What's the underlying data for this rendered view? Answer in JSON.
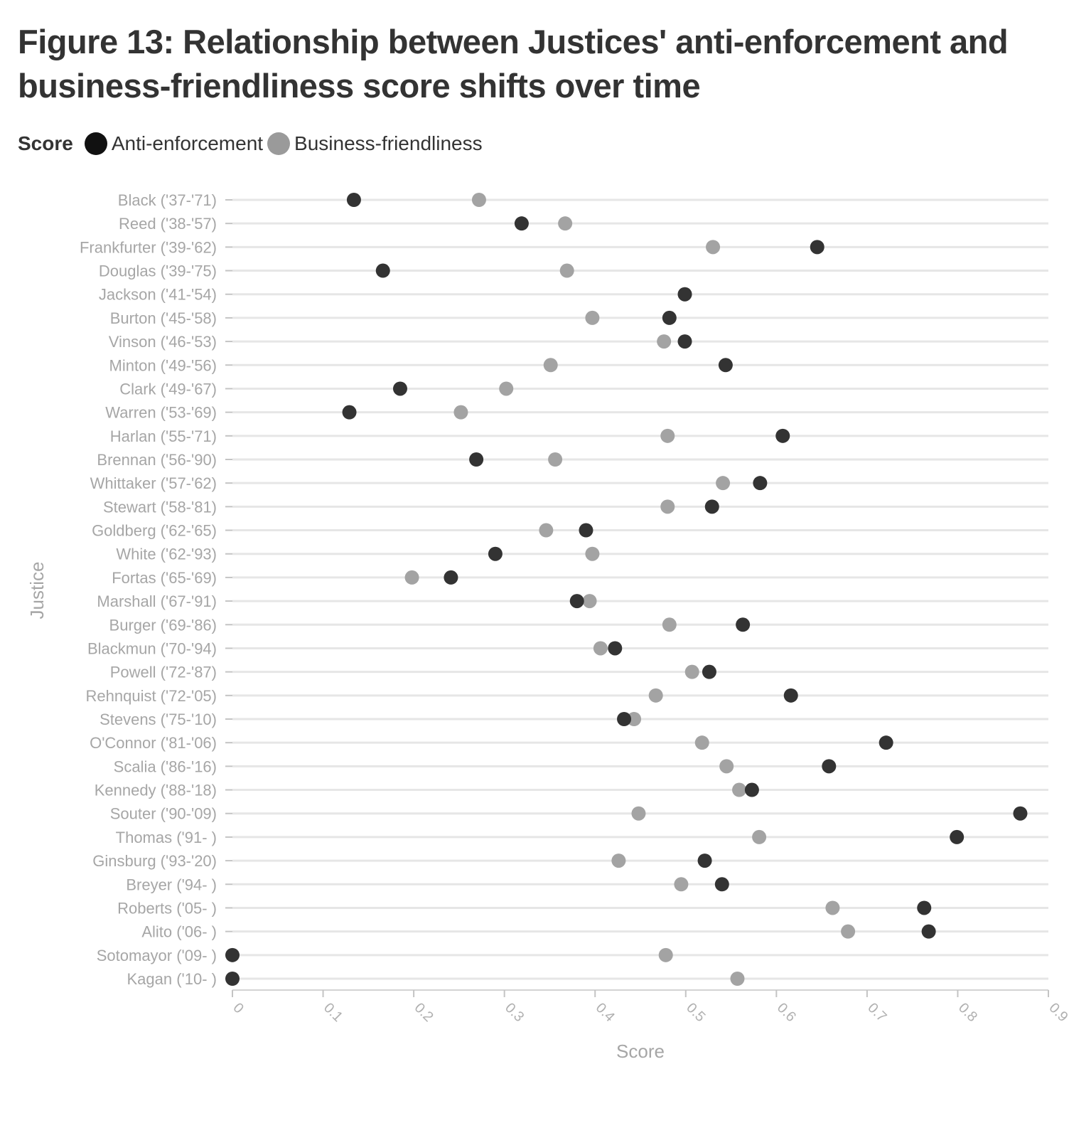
{
  "chart_data": {
    "type": "scatter",
    "title": "Figure 13: Relationship between Justices' anti-enforcement and business-friendliness score shifts over time",
    "xlabel": "Score",
    "ylabel": "Justice",
    "xlim": [
      0,
      0.9
    ],
    "xticks": [
      "0",
      "0.1",
      "0.2",
      "0.3",
      "0.4",
      "0.5",
      "0.6",
      "0.7",
      "0.8",
      "0.9"
    ],
    "grid": "horizontal",
    "legend": {
      "title": "Score",
      "position": "top-left"
    },
    "categories": [
      "Black ('37-'71)",
      "Reed ('38-'57)",
      "Frankfurter ('39-'62)",
      "Douglas ('39-'75)",
      "Jackson ('41-'54)",
      "Burton ('45-'58)",
      "Vinson ('46-'53)",
      "Minton ('49-'56)",
      "Clark ('49-'67)",
      "Warren ('53-'69)",
      "Harlan ('55-'71)",
      "Brennan ('56-'90)",
      "Whittaker ('57-'62)",
      "Stewart ('58-'81)",
      "Goldberg ('62-'65)",
      "White ('62-'93)",
      "Fortas ('65-'69)",
      "Marshall ('67-'91)",
      "Burger ('69-'86)",
      "Blackmun ('70-'94)",
      "Powell ('72-'87)",
      "Rehnquist ('72-'05)",
      "Stevens ('75-'10)",
      "O'Connor ('81-'06)",
      "Scalia ('86-'16)",
      "Kennedy ('88-'18)",
      "Souter ('90-'09)",
      "Thomas ('91- )",
      "Ginsburg ('93-'20)",
      "Breyer ('94- )",
      "Roberts ('05- )",
      "Alito ('06- )",
      "Sotomayor ('09- )",
      "Kagan ('10- )"
    ],
    "series": [
      {
        "name": "Business-friendliness",
        "color": "#a3a3a3",
        "values": [
          0.272,
          0.367,
          0.53,
          0.369,
          0.499,
          0.397,
          0.476,
          0.351,
          0.302,
          0.252,
          0.48,
          0.356,
          0.541,
          0.48,
          0.346,
          0.397,
          0.198,
          0.394,
          0.482,
          0.406,
          0.507,
          0.467,
          0.443,
          0.518,
          0.545,
          0.559,
          0.448,
          0.581,
          0.426,
          0.495,
          0.662,
          0.679,
          0.478,
          0.557
        ]
      },
      {
        "name": "Anti-enforcement",
        "color": "#333333",
        "values": [
          0.134,
          0.319,
          0.645,
          0.166,
          0.499,
          0.482,
          0.499,
          0.544,
          0.185,
          0.129,
          0.607,
          0.269,
          0.582,
          0.529,
          0.39,
          0.29,
          0.241,
          0.38,
          0.563,
          0.422,
          0.526,
          0.616,
          0.432,
          0.721,
          0.658,
          0.573,
          0.869,
          0.799,
          0.521,
          0.54,
          0.763,
          0.768,
          0.0,
          0.0
        ]
      }
    ],
    "legend_colors": {
      "Anti-enforcement": "#111111",
      "Business-friendliness": "#9a9a9a"
    }
  }
}
